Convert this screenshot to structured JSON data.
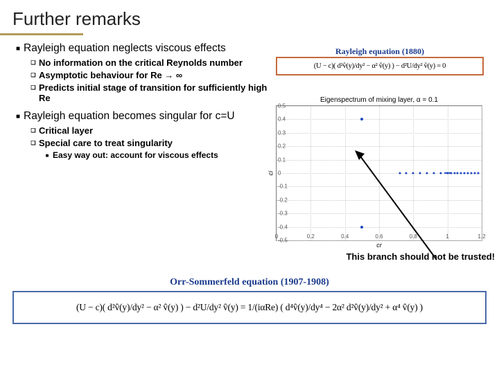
{
  "title": "Further remarks",
  "bullets": {
    "b1": "Rayleigh equation neglects viscous effects",
    "b1a": "No information on the critical Reynolds number",
    "b1b": "Asymptotic behaviour for Re → ∞",
    "b1c": "Predicts initial stage of transition for sufficiently high Re",
    "b2": "Rayleigh equation becomes singular for c=U",
    "b2a": "Critical layer",
    "b2b": "Special care to treat singularity",
    "b2b1": "Easy way out: account for viscous effects"
  },
  "eq1": {
    "label": "Rayleigh equation (1880)",
    "label_color": "#1a3a8c",
    "border_color": "#c46a3b",
    "tex": "(U − c)( d²v̂(y)/dy² − α² v̂(y) ) − d²U/dy² v̂(y) = 0"
  },
  "chart": {
    "title": "Eigenspectrum of mixing layer, α = 0.1",
    "xlim": [
      0,
      1.2
    ],
    "ylim": [
      -0.5,
      0.5
    ],
    "xticks": [
      0,
      0.2,
      0.4,
      0.6,
      0.8,
      1.0,
      1.2
    ],
    "yticks": [
      -0.5,
      -0.4,
      -0.3,
      -0.2,
      -0.1,
      0,
      0.1,
      0.2,
      0.3,
      0.4,
      0.5
    ],
    "xlabel": "cr",
    "ylabel": "ci",
    "grid_color": "#cccccc",
    "series_branch": {
      "color": "#2048c0",
      "size": 3,
      "points": [
        [
          0.72,
          0
        ],
        [
          0.76,
          0
        ],
        [
          0.8,
          0
        ],
        [
          0.84,
          0
        ],
        [
          0.88,
          0
        ],
        [
          0.92,
          0
        ],
        [
          0.96,
          0
        ],
        [
          1.0,
          0
        ],
        [
          1.02,
          0
        ],
        [
          1.04,
          0
        ],
        [
          1.06,
          0
        ],
        [
          1.08,
          0
        ],
        [
          1.1,
          0
        ],
        [
          1.12,
          0
        ],
        [
          1.14,
          0
        ],
        [
          1.16,
          0
        ],
        [
          1.18,
          0
        ]
      ]
    },
    "series_branch_dense": {
      "color": "#2048c0",
      "size": 2.4,
      "points": [
        [
          0.985,
          0
        ],
        [
          0.99,
          0
        ],
        [
          0.995,
          0
        ],
        [
          1.0,
          0
        ],
        [
          1.005,
          0
        ],
        [
          1.01,
          0
        ],
        [
          1.015,
          0
        ]
      ]
    },
    "series_outliers": {
      "color": "#2048c0",
      "size": 4,
      "points": [
        [
          0.5,
          0.4
        ],
        [
          0.5,
          -0.4
        ]
      ]
    }
  },
  "caption": "This branch should not be trusted!",
  "arrow_color": "#000000",
  "eq2": {
    "label": "Orr-Sommerfeld equation (1907-1908)",
    "label_color": "#1a3a8c",
    "border_color": "#4a6aa8",
    "tex": "(U − c)( d²v̂(y)/dy² − α² v̂(y) ) − d²U/dy² v̂(y)  =  1/(iαRe) ( d⁴v̂(y)/dy⁴ − 2α² d²v̂(y)/dy² + α⁴ v̂(y) )"
  }
}
